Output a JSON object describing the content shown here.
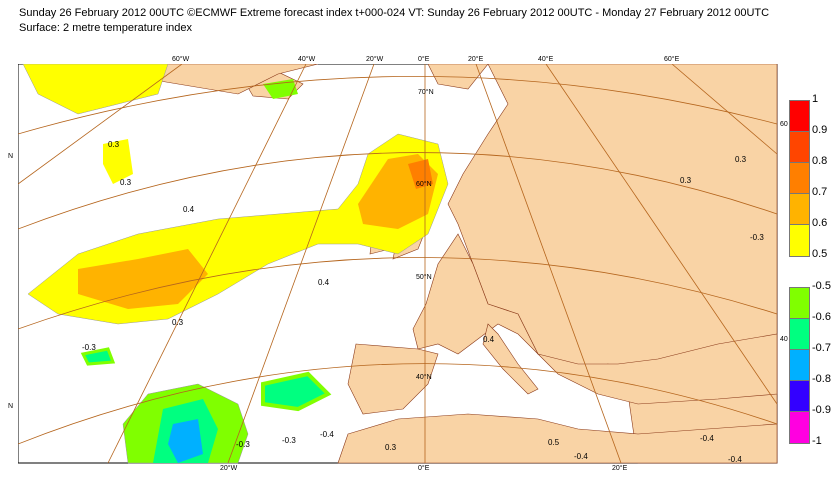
{
  "header": {
    "title_line1": "Sunday 26 February 2012 00UTC ©ECMWF Extreme forecast index t+000-024 VT: Sunday 26 February 2012 00UTC - Monday 27 February 2012 00UTC",
    "title_line2": "Surface: 2 metre temperature index"
  },
  "map": {
    "colors": {
      "ocean": "#ffffff",
      "land": "#f9d3a5",
      "grid": "#b5651d",
      "coast": "#8b3a1a"
    },
    "top_lon_labels": [
      "60°W",
      "40°W",
      "20°W",
      "0°E",
      "20°E",
      "40°E",
      "60°E"
    ],
    "bottom_lon_labels": [
      "20°W",
      "0°E",
      "20°E"
    ],
    "lat_labels": [
      "70°N",
      "60°N",
      "50°N",
      "40°N"
    ],
    "side_labels": {
      "left_upper": "N",
      "left_lower": "N",
      "right_upper": "60",
      "right_lower": "40"
    },
    "contour_labels": [
      "0.3",
      "0.3",
      "0.4",
      "0.4",
      "0.3",
      "-0.3",
      "-0.3",
      "-0.4",
      "-0.3",
      "0.4",
      "-0.4",
      "-0.3",
      "0.3",
      "-0.4",
      "-0.4",
      "0.3",
      "0.5",
      "0.3"
    ]
  },
  "legend": {
    "positive": [
      {
        "value": "1",
        "color": "#ff0000"
      },
      {
        "value": "0.9",
        "color": "#ff4500"
      },
      {
        "value": "0.8",
        "color": "#ff7f00"
      },
      {
        "value": "0.7",
        "color": "#ffb300"
      },
      {
        "value": "0.6",
        "color": "#ffff00"
      },
      {
        "value": "0.5"
      }
    ],
    "negative": [
      {
        "value": "-0.5",
        "color": "#80ff00"
      },
      {
        "value": "-0.6",
        "color": "#00ff80"
      },
      {
        "value": "-0.7",
        "color": "#00b0ff"
      },
      {
        "value": "-0.8",
        "color": "#3300ff"
      },
      {
        "value": "-0.9",
        "color": "#ff00e0"
      },
      {
        "value": "-1"
      }
    ]
  }
}
